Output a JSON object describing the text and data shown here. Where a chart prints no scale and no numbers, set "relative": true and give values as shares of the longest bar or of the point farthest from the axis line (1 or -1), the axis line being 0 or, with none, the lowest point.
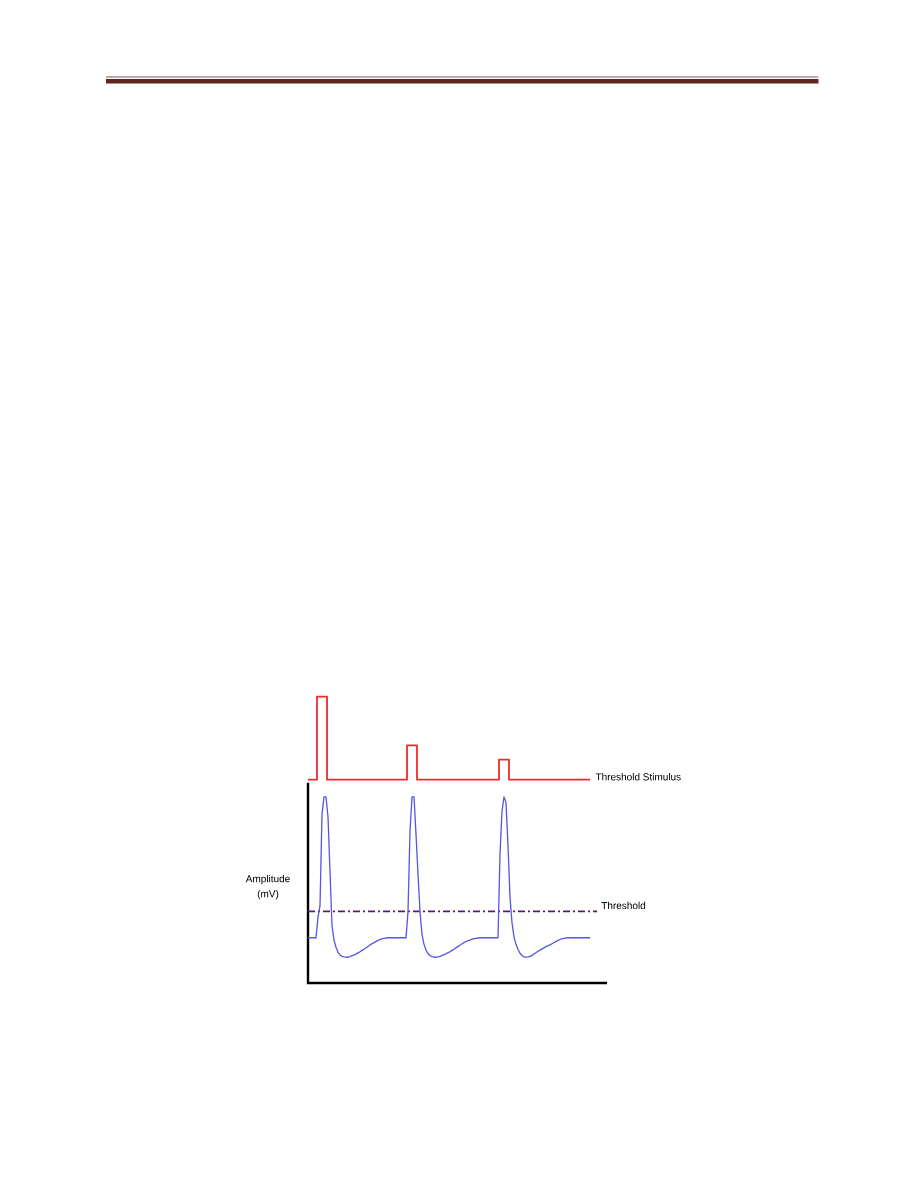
{
  "chart_data": {
    "type": "line",
    "relative": true,
    "ylabel": "Amplitude (mV)",
    "categories": [
      null,
      null,
      null,
      null,
      null,
      null,
      null,
      null,
      null,
      null,
      null,
      null,
      null,
      null,
      null,
      null,
      null,
      null,
      null,
      null,
      null,
      null,
      null,
      null,
      null,
      null,
      null,
      null,
      null,
      null,
      null,
      null,
      null,
      null,
      null,
      null,
      null,
      null,
      null,
      null,
      null,
      null,
      null,
      null,
      null,
      null,
      null,
      null,
      null,
      null,
      null,
      null,
      null,
      null,
      null,
      null,
      null,
      null,
      null,
      null,
      null,
      null,
      null,
      null,
      null,
      null,
      null,
      null,
      null,
      null,
      null,
      null,
      null,
      null,
      null,
      null,
      null,
      null,
      null,
      null,
      null,
      null,
      null,
      null,
      null,
      null,
      null,
      null,
      null,
      null,
      null,
      null,
      null,
      null,
      null,
      null,
      null,
      null,
      null,
      null,
      null,
      null,
      null,
      null,
      null,
      null,
      null,
      null,
      null,
      null,
      null,
      null,
      null,
      null,
      null,
      null,
      null,
      null,
      null,
      null,
      null,
      null,
      null,
      null,
      null,
      null,
      null,
      null,
      null,
      null,
      null,
      null,
      null,
      null,
      null,
      null,
      null,
      null,
      null,
      null,
      null,
      null
    ],
    "series": [
      {
        "name": "Threshold Stimulus",
        "type": "step",
        "color": "#ee2b2b",
        "values": [
          0.71,
          0.71,
          0.71,
          0.71,
          0.71,
          1,
          1,
          1,
          1,
          1,
          0.71,
          0.71,
          0.71,
          0.71,
          0.71,
          0.71,
          0.71,
          0.71,
          0.71,
          0.71,
          0.71,
          0.71,
          0.71,
          0.71,
          0.71,
          0.71,
          0.71,
          0.71,
          0.71,
          0.71,
          0.71,
          0.71,
          0.71,
          0.71,
          0.71,
          0.71,
          0.71,
          0.71,
          0.71,
          0.71,
          0.71,
          0.71,
          0.71,
          0.71,
          0.71,
          0.71,
          0.71,
          0.71,
          0.71,
          0.71,
          0.83,
          0.83,
          0.83,
          0.83,
          0.83,
          0.71,
          0.71,
          0.71,
          0.71,
          0.71,
          0.71,
          0.71,
          0.71,
          0.71,
          0.71,
          0.71,
          0.71,
          0.71,
          0.71,
          0.71,
          0.71,
          0.71,
          0.71,
          0.71,
          0.71,
          0.71,
          0.71,
          0.71,
          0.71,
          0.71,
          0.71,
          0.71,
          0.71,
          0.71,
          0.71,
          0.71,
          0.71,
          0.71,
          0.71,
          0.71,
          0.71,
          0.71,
          0.71,
          0.71,
          0.71,
          0.71,
          0.78,
          0.78,
          0.78,
          0.78,
          0.78,
          0.71,
          0.71,
          0.71,
          0.71,
          0.71,
          0.71,
          0.71,
          0.71,
          0.71,
          0.71,
          0.71,
          0.71,
          0.71,
          0.71,
          0.71,
          0.71,
          0.71,
          0.71,
          0.71,
          0.71,
          0.71,
          0.71,
          0.71,
          0.71,
          0.71,
          0.71,
          0.71,
          0.71,
          0.71,
          0.71,
          0.71,
          0.71,
          0.71,
          0.71,
          0.71,
          0.71,
          0.71,
          0.71,
          0.71,
          0.71,
          0.71
        ]
      },
      {
        "color": "#5555e6",
        "values": [
          0.158,
          0.158,
          0.158,
          0.158,
          0.158,
          0.23,
          0.27,
          0.59,
          0.65,
          0.65,
          0.58,
          0.39,
          0.2,
          0.15,
          0.125,
          0.108,
          0.098,
          0.093,
          0.091,
          0.09,
          0.09,
          0.092,
          0.095,
          0.098,
          0.101,
          0.105,
          0.109,
          0.114,
          0.118,
          0.123,
          0.128,
          0.133,
          0.137,
          0.141,
          0.145,
          0.149,
          0.152,
          0.154,
          0.156,
          0.157,
          0.158,
          0.158,
          0.158,
          0.158,
          0.158,
          0.158,
          0.158,
          0.158,
          0.158,
          0.158,
          0.25,
          0.53,
          0.65,
          0.65,
          0.52,
          0.38,
          0.25,
          0.17,
          0.135,
          0.115,
          0.103,
          0.096,
          0.092,
          0.09,
          0.09,
          0.091,
          0.093,
          0.096,
          0.099,
          0.102,
          0.106,
          0.109,
          0.114,
          0.118,
          0.123,
          0.128,
          0.132,
          0.137,
          0.141,
          0.145,
          0.148,
          0.15,
          0.153,
          0.155,
          0.156,
          0.157,
          0.158,
          0.158,
          0.158,
          0.158,
          0.158,
          0.158,
          0.158,
          0.158,
          0.158,
          0.158,
          0.45,
          0.6,
          0.65,
          0.63,
          0.48,
          0.3,
          0.21,
          0.16,
          0.135,
          0.117,
          0.104,
          0.096,
          0.091,
          0.09,
          0.091,
          0.093,
          0.097,
          0.101,
          0.106,
          0.111,
          0.115,
          0.119,
          0.123,
          0.127,
          0.13,
          0.133,
          0.137,
          0.141,
          0.145,
          0.149,
          0.152,
          0.154,
          0.156,
          0.157,
          0.158,
          0.158,
          0.158,
          0.158,
          0.158,
          0.158,
          0.158,
          0.158,
          0.158,
          0.158,
          0.158,
          0.158
        ]
      }
    ],
    "ref_lines": [
      {
        "axis": "y",
        "value": 0.25,
        "label": "Threshold",
        "color": "#5a1a78",
        "line_style": "dashdot"
      }
    ]
  }
}
